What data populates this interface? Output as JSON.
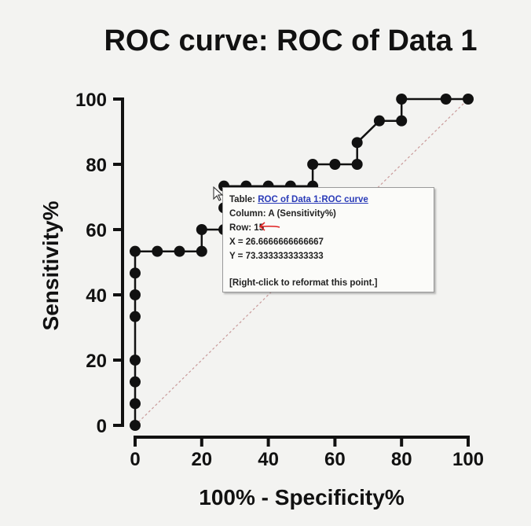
{
  "chart_data": {
    "type": "line",
    "title": "ROC curve: ROC of Data 1",
    "xlabel": "100% - Specificity%",
    "ylabel": "Sensitivity%",
    "xlim": [
      0,
      100
    ],
    "ylim": [
      0,
      100
    ],
    "xticks": [
      "0",
      "20",
      "40",
      "60",
      "80",
      "100"
    ],
    "yticks": [
      "0",
      "20",
      "40",
      "60",
      "80",
      "100"
    ],
    "grid": false,
    "reference_line": true,
    "series": [
      {
        "points": [
          [
            0,
            0
          ],
          [
            0,
            6.67
          ],
          [
            0,
            13.33
          ],
          [
            0,
            20
          ],
          [
            0,
            33.33
          ],
          [
            0,
            40
          ],
          [
            0,
            46.67
          ],
          [
            0,
            53.33
          ],
          [
            6.67,
            53.33
          ],
          [
            13.33,
            53.33
          ],
          [
            20,
            53.33
          ],
          [
            20,
            60
          ],
          [
            26.67,
            60
          ],
          [
            26.67,
            66.67
          ],
          [
            26.67,
            73.33
          ],
          [
            33.33,
            73.33
          ],
          [
            40,
            73.33
          ],
          [
            46.67,
            73.33
          ],
          [
            53.33,
            73.33
          ],
          [
            53.33,
            80
          ],
          [
            60,
            80
          ],
          [
            66.67,
            80
          ],
          [
            66.67,
            86.67
          ],
          [
            73.33,
            93.33
          ],
          [
            80,
            93.33
          ],
          [
            80,
            100
          ],
          [
            93.33,
            100
          ],
          [
            100,
            100
          ]
        ]
      }
    ]
  },
  "tooltip": {
    "table_prefix": "Table: ",
    "table_link": "ROC of Data 1:ROC curve",
    "column": "Column: A (Sensitivity%)",
    "row": "Row: 15",
    "x": "X = 26.6666666666667",
    "y": "Y = 73.3333333333333",
    "hint": "[Right-click to reformat this point.]"
  },
  "colors": {
    "series": "#111111",
    "reference_line": "#c99a9a",
    "link": "#2a3bb8",
    "annotation_arrow": "#e02020"
  },
  "icons": {
    "cursor": "mouse-pointer-icon",
    "annotation": "red-arrow-icon"
  }
}
